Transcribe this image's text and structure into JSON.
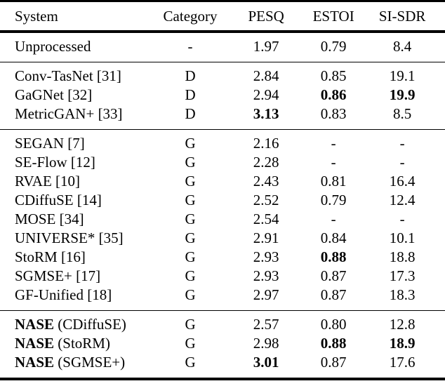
{
  "table": {
    "columns": [
      "System",
      "Category",
      "PESQ",
      "ESTOI",
      "SI-SDR"
    ],
    "sections": [
      {
        "id": "unprocessed",
        "rows": [
          {
            "system_bold": "",
            "system": "Unprocessed",
            "category": "-",
            "pesq": "1.97",
            "pesq_bold": false,
            "estoi": "0.79",
            "estoi_bold": false,
            "sisdr": "8.4",
            "sisdr_bold": false
          }
        ]
      },
      {
        "id": "discriminative",
        "rows": [
          {
            "system_bold": "",
            "system": "Conv-TasNet [31]",
            "category": "D",
            "pesq": "2.84",
            "pesq_bold": false,
            "estoi": "0.85",
            "estoi_bold": false,
            "sisdr": "19.1",
            "sisdr_bold": false
          },
          {
            "system_bold": "",
            "system": "GaGNet [32]",
            "category": "D",
            "pesq": "2.94",
            "pesq_bold": false,
            "estoi": "0.86",
            "estoi_bold": true,
            "sisdr": "19.9",
            "sisdr_bold": true
          },
          {
            "system_bold": "",
            "system": "MetricGAN+ [33]",
            "category": "D",
            "pesq": "3.13",
            "pesq_bold": true,
            "estoi": "0.83",
            "estoi_bold": false,
            "sisdr": "8.5",
            "sisdr_bold": false
          }
        ]
      },
      {
        "id": "generative",
        "rows": [
          {
            "system_bold": "",
            "system": "SEGAN [7]",
            "category": "G",
            "pesq": "2.16",
            "pesq_bold": false,
            "estoi": "-",
            "estoi_bold": false,
            "sisdr": "-",
            "sisdr_bold": false
          },
          {
            "system_bold": "",
            "system": "SE-Flow [12]",
            "category": "G",
            "pesq": "2.28",
            "pesq_bold": false,
            "estoi": "-",
            "estoi_bold": false,
            "sisdr": "-",
            "sisdr_bold": false
          },
          {
            "system_bold": "",
            "system": "RVAE [10]",
            "category": "G",
            "pesq": "2.43",
            "pesq_bold": false,
            "estoi": "0.81",
            "estoi_bold": false,
            "sisdr": "16.4",
            "sisdr_bold": false
          },
          {
            "system_bold": "",
            "system": "CDiffuSE [14]",
            "category": "G",
            "pesq": "2.52",
            "pesq_bold": false,
            "estoi": "0.79",
            "estoi_bold": false,
            "sisdr": "12.4",
            "sisdr_bold": false
          },
          {
            "system_bold": "",
            "system": "MOSE [34]",
            "category": "G",
            "pesq": "2.54",
            "pesq_bold": false,
            "estoi": "-",
            "estoi_bold": false,
            "sisdr": "-",
            "sisdr_bold": false
          },
          {
            "system_bold": "",
            "system": "UNIVERSE* [35]",
            "category": "G",
            "pesq": "2.91",
            "pesq_bold": false,
            "estoi": "0.84",
            "estoi_bold": false,
            "sisdr": "10.1",
            "sisdr_bold": false
          },
          {
            "system_bold": "",
            "system": "StoRM [16]",
            "category": "G",
            "pesq": "2.93",
            "pesq_bold": false,
            "estoi": "0.88",
            "estoi_bold": true,
            "sisdr": "18.8",
            "sisdr_bold": false
          },
          {
            "system_bold": "",
            "system": "SGMSE+ [17]",
            "category": "G",
            "pesq": "2.93",
            "pesq_bold": false,
            "estoi": "0.87",
            "estoi_bold": false,
            "sisdr": "17.3",
            "sisdr_bold": false
          },
          {
            "system_bold": "",
            "system": "GF-Unified [18]",
            "category": "G",
            "pesq": "2.97",
            "pesq_bold": false,
            "estoi": "0.87",
            "estoi_bold": false,
            "sisdr": "18.3",
            "sisdr_bold": false
          }
        ]
      },
      {
        "id": "nase",
        "rows": [
          {
            "system_bold": "NASE",
            "system": " (CDiffuSE)",
            "category": "G",
            "pesq": "2.57",
            "pesq_bold": false,
            "estoi": "0.80",
            "estoi_bold": false,
            "sisdr": "12.8",
            "sisdr_bold": false
          },
          {
            "system_bold": "NASE",
            "system": " (StoRM)",
            "category": "G",
            "pesq": "2.98",
            "pesq_bold": false,
            "estoi": "0.88",
            "estoi_bold": true,
            "sisdr": "18.9",
            "sisdr_bold": true
          },
          {
            "system_bold": "NASE",
            "system": " (SGMSE+)",
            "category": "G",
            "pesq": "3.01",
            "pesq_bold": true,
            "estoi": "0.87",
            "estoi_bold": false,
            "sisdr": "17.6",
            "sisdr_bold": false
          }
        ]
      }
    ]
  }
}
